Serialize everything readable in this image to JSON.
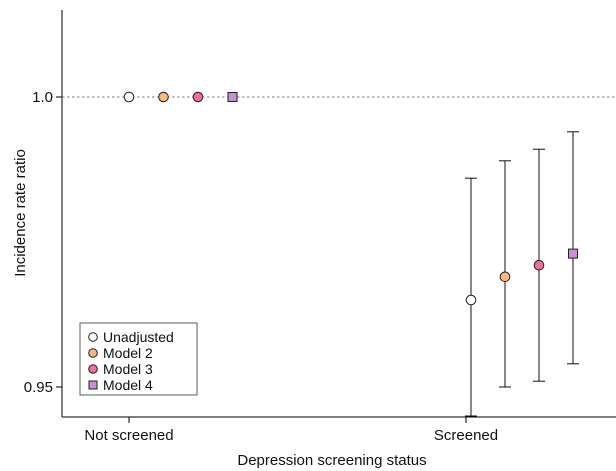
{
  "chart_data": {
    "type": "scatter",
    "xlabel": "Depression screening status",
    "ylabel": "Incidence rate ratio",
    "categories": [
      "Not screened",
      "Screened"
    ],
    "yticks": [
      {
        "value": 0.95,
        "label": "0.95"
      },
      {
        "value": 1.0,
        "label": "1.0"
      }
    ],
    "ylim": [
      0.945,
      1.015
    ],
    "reference_line": {
      "value": 1.0,
      "style": "dashed"
    },
    "legend_position": "bottom-left",
    "series": [
      {
        "name": "Unadjusted",
        "marker": "circle",
        "color": "#ffffff",
        "points": [
          {
            "category": "Not screened",
            "y": 1.0
          },
          {
            "category": "Screened",
            "y": 0.965,
            "lower": 0.945,
            "upper": 0.986
          }
        ]
      },
      {
        "name": "Model 2",
        "marker": "circle",
        "color": "#f9b97a",
        "points": [
          {
            "category": "Not screened",
            "y": 1.0
          },
          {
            "category": "Screened",
            "y": 0.969,
            "lower": 0.95,
            "upper": 0.989
          }
        ]
      },
      {
        "name": "Model 3",
        "marker": "circle",
        "color": "#ee6e95",
        "points": [
          {
            "category": "Not screened",
            "y": 1.0
          },
          {
            "category": "Screened",
            "y": 0.971,
            "lower": 0.951,
            "upper": 0.991
          }
        ]
      },
      {
        "name": "Model 4",
        "marker": "square",
        "color": "#c792d0",
        "points": [
          {
            "category": "Not screened",
            "y": 1.0
          },
          {
            "category": "Screened",
            "y": 0.973,
            "lower": 0.954,
            "upper": 0.994
          }
        ]
      }
    ]
  }
}
